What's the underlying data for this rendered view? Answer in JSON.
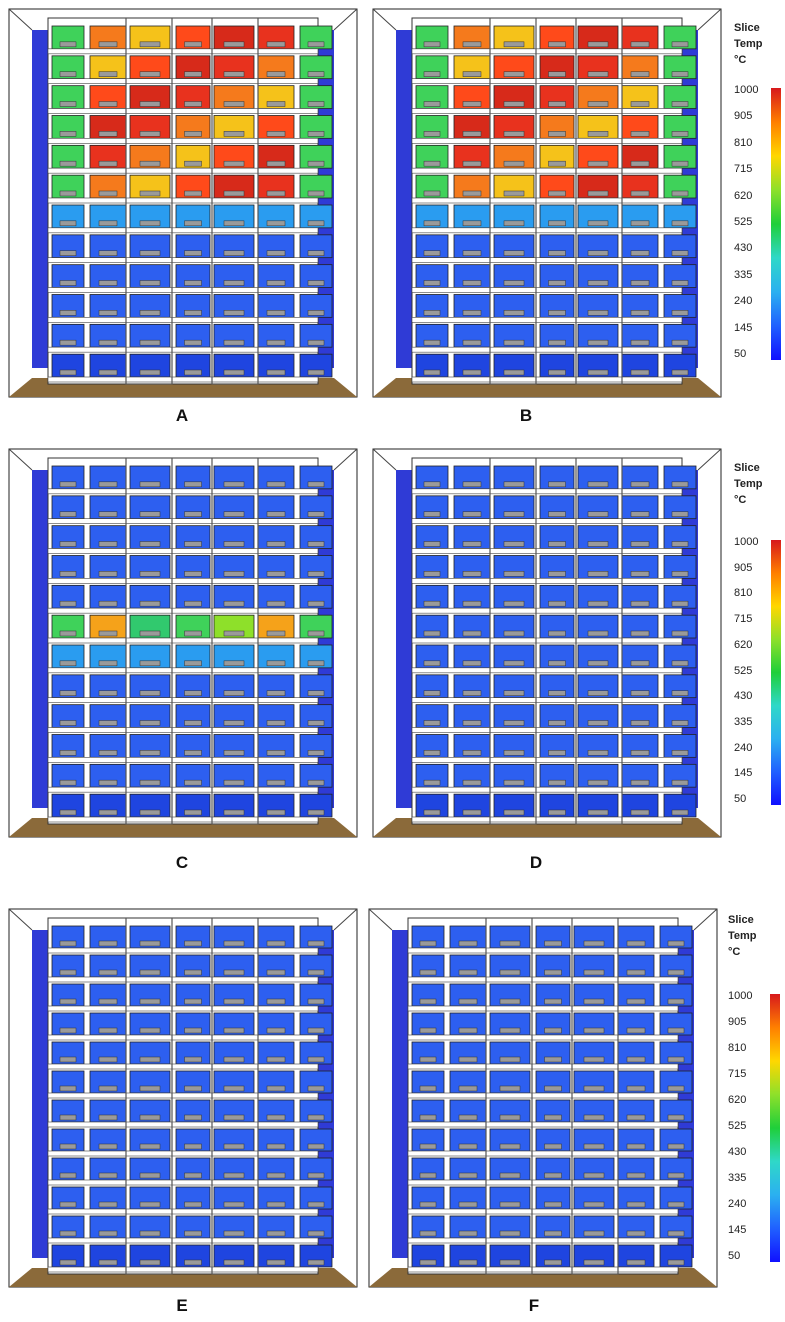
{
  "figure": {
    "panels": [
      {
        "label": "A",
        "fire_floors": [
          7,
          8,
          9,
          10,
          11,
          12
        ],
        "peak": "high"
      },
      {
        "label": "B",
        "fire_floors": [
          7,
          8,
          9,
          10,
          11,
          12
        ],
        "peak": "high"
      },
      {
        "label": "C",
        "fire_floors": [
          7
        ],
        "peak": "medium"
      },
      {
        "label": "D",
        "fire_floors": [],
        "peak": "low"
      },
      {
        "label": "E",
        "fire_floors": [],
        "peak": "low"
      },
      {
        "label": "F",
        "fire_floors": [],
        "peak": "low"
      }
    ],
    "legend": {
      "title_line1": "Slice",
      "title_line2": "Temp",
      "title_line3": "°C",
      "ticks": [
        "1000",
        "905",
        "810",
        "715",
        "620",
        "525",
        "430",
        "335",
        "240",
        "145",
        "50"
      ],
      "colors": [
        "#d7191c",
        "#ff7f00",
        "#ffd700",
        "#8ee02a",
        "#1fcf3a",
        "#2fd8c8",
        "#2bb0f0",
        "#2060ff",
        "#1010ff"
      ]
    },
    "colors": {
      "ground": "#8b6a3a",
      "wall": "#2f3bd6",
      "frame": "#ffffff",
      "cold_room": "#2d5ff0"
    }
  }
}
